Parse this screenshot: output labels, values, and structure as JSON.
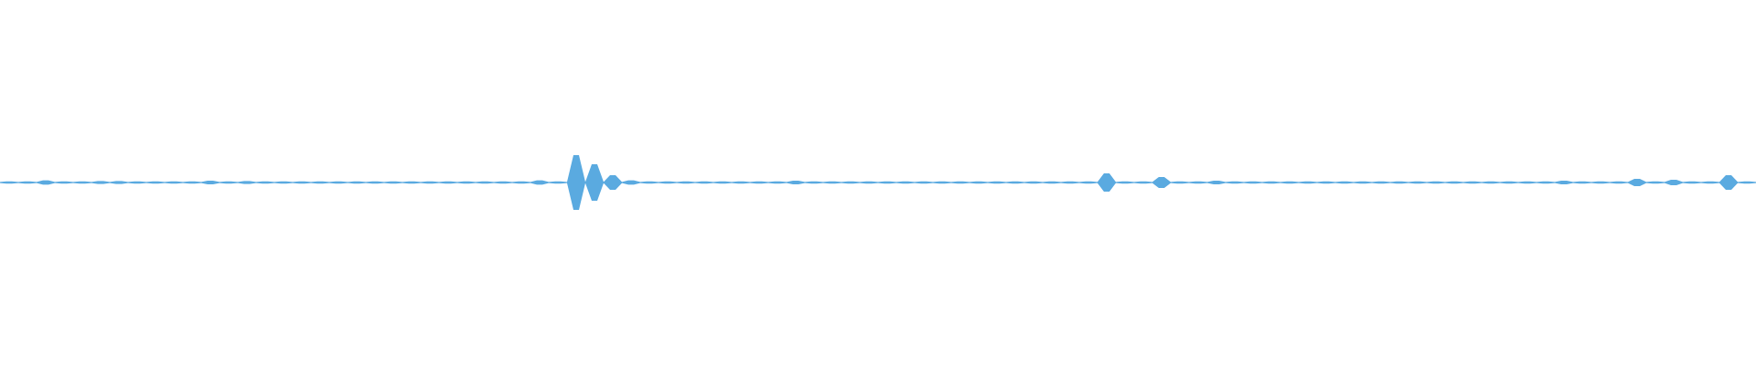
{
  "chart_data": {
    "type": "waveform",
    "color": "#5aaae0",
    "ylim": [
      -1,
      1
    ],
    "values": [
      0.006,
      0.006,
      0.012,
      0.006,
      0.006,
      0.008,
      0.008,
      0.006,
      0.006,
      0.006,
      0.006,
      0.01,
      0.006,
      0.008,
      0.006,
      0.006,
      0.006,
      0.006,
      0.006,
      0.006,
      0.006,
      0.006,
      0.006,
      0.006,
      0.006,
      0.006,
      0.006,
      0.006,
      0.006,
      0.012,
      0.006,
      0.15,
      0.1,
      0.04,
      0.012,
      0.006,
      0.006,
      0.006,
      0.006,
      0.006,
      0.006,
      0.006,
      0.006,
      0.01,
      0.006,
      0.006,
      0.006,
      0.006,
      0.006,
      0.006,
      0.006,
      0.006,
      0.006,
      0.006,
      0.006,
      0.006,
      0.006,
      0.006,
      0.006,
      0.006,
      0.05,
      0.006,
      0.006,
      0.03,
      0.006,
      0.006,
      0.01,
      0.006,
      0.006,
      0.006,
      0.006,
      0.006,
      0.006,
      0.006,
      0.006,
      0.006,
      0.006,
      0.006,
      0.006,
      0.006,
      0.006,
      0.006,
      0.006,
      0.006,
      0.006,
      0.01,
      0.006,
      0.006,
      0.006,
      0.02,
      0.006,
      0.015,
      0.006,
      0.006,
      0.04,
      0.006
    ]
  }
}
